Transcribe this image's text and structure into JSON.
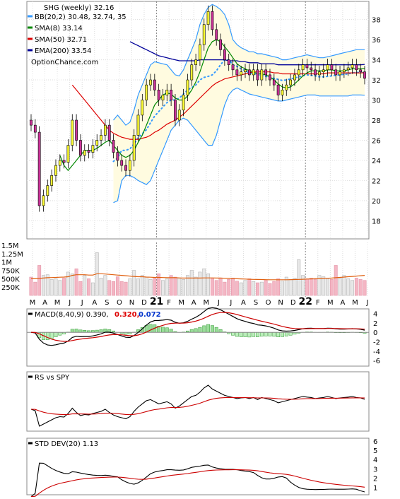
{
  "chart_data": {
    "type": "candlestick",
    "title": "SHG (weekly) 32.16",
    "watermark": "OptionChance.com",
    "legend": [
      {
        "label": "BB(20,2) 30.48, 32.74, 35",
        "color": "#3399ff"
      },
      {
        "label": "SMA(8) 33.14",
        "color": "#008800"
      },
      {
        "label": "SMA(50) 32.71",
        "color": "#dd0000"
      },
      {
        "label": "EMA(200) 33.54",
        "color": "#000099"
      }
    ],
    "x_ticks": [
      "M",
      "A",
      "M",
      "J",
      "J",
      "A",
      "S",
      "O",
      "N",
      "D",
      "21",
      "F",
      "M",
      "A",
      "M",
      "J",
      "J",
      "A",
      "S",
      "O",
      "N",
      "D",
      "22",
      "F",
      "M",
      "A",
      "M",
      "J"
    ],
    "price_axis": {
      "ticks": [
        18,
        20,
        22,
        24,
        26,
        28,
        30,
        32,
        34,
        36,
        38
      ],
      "ylim": [
        16.2,
        39.8
      ]
    },
    "close": [
      27.5,
      26.8,
      19.5,
      20.5,
      21.5,
      22.5,
      23.5,
      24.0,
      23.8,
      25.5,
      28.0,
      26.0,
      24.5,
      25.0,
      24.8,
      25.5,
      26.0,
      26.5,
      27.5,
      26.0,
      24.8,
      24.0,
      23.5,
      23.0,
      24.0,
      26.5,
      28.5,
      30.0,
      31.5,
      32.0,
      31.0,
      30.0,
      30.5,
      31.0,
      30.0,
      28.0,
      29.0,
      30.5,
      32.0,
      33.5,
      34.0,
      35.5,
      37.5,
      38.8,
      37.0,
      36.0,
      35.0,
      34.0,
      33.5,
      33.0,
      32.5,
      32.8,
      33.0,
      32.5,
      33.0,
      32.0,
      33.0,
      32.5,
      32.0,
      31.5,
      30.5,
      31.0,
      31.5,
      32.0,
      32.5,
      33.0,
      33.5,
      33.2,
      33.0,
      32.5,
      32.8,
      33.0,
      33.5,
      33.0,
      32.5,
      32.8,
      33.0,
      33.2,
      33.5,
      33.0,
      32.8,
      32.16
    ],
    "bb": {
      "upper": [
        null,
        null,
        null,
        null,
        null,
        null,
        null,
        null,
        null,
        null,
        null,
        null,
        null,
        null,
        null,
        null,
        null,
        null,
        null,
        null,
        28.0,
        28.5,
        28.0,
        27.5,
        27.8,
        29.0,
        30.5,
        31.5,
        32.5,
        33.5,
        33.8,
        33.7,
        33.6,
        33.5,
        33.0,
        32.5,
        32.4,
        33.0,
        34.0,
        35.0,
        36.0,
        37.5,
        38.5,
        39.2,
        39.5,
        39.3,
        39.0,
        38.5,
        37.5,
        36.0,
        35.5,
        35.2,
        35.0,
        34.8,
        34.8,
        34.6,
        34.6,
        34.5,
        34.4,
        34.3,
        34.2,
        34.0,
        34.0,
        34.1,
        34.2,
        34.3,
        34.4,
        34.5,
        34.4,
        34.3,
        34.2,
        34.2,
        34.3,
        34.4,
        34.5,
        34.6,
        34.7,
        34.8,
        34.9,
        35.0,
        35.0,
        35.0
      ],
      "lower": [
        null,
        null,
        null,
        null,
        null,
        null,
        null,
        null,
        null,
        null,
        null,
        null,
        null,
        null,
        null,
        null,
        null,
        null,
        null,
        null,
        19.8,
        20.0,
        22.0,
        22.5,
        22.5,
        22.3,
        22.0,
        21.8,
        21.6,
        22.0,
        23.0,
        24.0,
        25.0,
        26.0,
        27.0,
        27.5,
        28.0,
        28.2,
        28.0,
        27.5,
        27.0,
        26.5,
        26.0,
        25.5,
        25.5,
        26.5,
        28.0,
        29.5,
        30.5,
        31.0,
        31.2,
        31.0,
        30.8,
        30.6,
        30.5,
        30.4,
        30.3,
        30.2,
        30.1,
        30.0,
        29.9,
        29.9,
        30.0,
        30.1,
        30.2,
        30.3,
        30.4,
        30.5,
        30.5,
        30.5,
        30.4,
        30.4,
        30.4,
        30.4,
        30.4,
        30.4,
        30.4,
        30.4,
        30.5,
        30.5,
        30.5,
        30.48
      ]
    },
    "sma8": [
      null,
      null,
      null,
      null,
      null,
      null,
      null,
      24.5,
      23.5,
      23.0,
      23.5,
      24.0,
      24.5,
      25.0,
      25.0,
      25.0,
      25.2,
      25.5,
      25.8,
      26.0,
      25.5,
      25.0,
      24.5,
      24.3,
      24.5,
      25.0,
      25.8,
      26.5,
      27.5,
      28.5,
      29.5,
      30.0,
      30.5,
      30.7,
      30.6,
      30.2,
      30.0,
      30.0,
      30.4,
      31.0,
      31.8,
      32.8,
      34.0,
      35.2,
      35.8,
      36.0,
      35.8,
      35.3,
      34.8,
      34.2,
      33.6,
      33.3,
      33.1,
      32.9,
      32.8,
      32.6,
      32.6,
      32.5,
      32.3,
      32.0,
      31.6,
      31.3,
      31.2,
      31.3,
      31.6,
      32.0,
      32.4,
      32.7,
      32.9,
      32.9,
      32.9,
      32.9,
      33.0,
      33.0,
      32.9,
      32.9,
      32.9,
      33.0,
      33.1,
      33.1,
      33.1,
      33.14
    ],
    "sma50": [
      null,
      null,
      null,
      null,
      null,
      null,
      null,
      null,
      null,
      null,
      31.5,
      31.0,
      30.5,
      30.0,
      29.5,
      29.0,
      28.5,
      28.0,
      27.5,
      27.0,
      26.7,
      26.5,
      26.3,
      26.2,
      26.1,
      26.1,
      26.1,
      26.2,
      26.3,
      26.5,
      26.8,
      27.0,
      27.3,
      27.6,
      27.8,
      28.0,
      28.3,
      28.6,
      29.0,
      29.4,
      29.8,
      30.2,
      30.6,
      31.0,
      31.4,
      31.7,
      31.9,
      32.1,
      32.2,
      32.3,
      32.4,
      32.5,
      32.6,
      32.7,
      32.8,
      32.8,
      32.8,
      32.8,
      32.8,
      32.7,
      32.7,
      32.6,
      32.6,
      32.6,
      32.6,
      32.6,
      32.6,
      32.6,
      32.6,
      32.6,
      32.6,
      32.6,
      32.7,
      32.7,
      32.7,
      32.7,
      32.7,
      32.7,
      32.7,
      32.7,
      32.7,
      32.71
    ],
    "ema200": [
      null,
      null,
      null,
      null,
      null,
      null,
      null,
      null,
      null,
      null,
      null,
      null,
      null,
      null,
      null,
      null,
      null,
      null,
      null,
      null,
      null,
      null,
      null,
      null,
      35.8,
      35.6,
      35.4,
      35.2,
      35.0,
      34.8,
      34.6,
      34.4,
      34.3,
      34.2,
      34.1,
      34.0,
      33.9,
      33.9,
      33.9,
      33.9,
      33.9,
      34.0,
      34.0,
      34.0,
      34.0,
      34.0,
      34.0,
      34.0,
      33.9,
      33.9,
      33.9,
      33.8,
      33.8,
      33.7,
      33.7,
      33.7,
      33.6,
      33.6,
      33.6,
      33.6,
      33.5,
      33.5,
      33.5,
      33.5,
      33.5,
      33.5,
      33.5,
      33.5,
      33.5,
      33.5,
      33.5,
      33.5,
      33.5,
      33.5,
      33.5,
      33.5,
      33.5,
      33.5,
      33.5,
      33.5,
      33.5,
      33.54
    ],
    "volume_axis": {
      "ticks": [
        "1.5M",
        "1.25M",
        "1M",
        "750K",
        "500K",
        "250K"
      ],
      "values": [
        1500,
        1250,
        1000,
        750,
        500,
        250
      ],
      "ylim": [
        0,
        1650
      ]
    },
    "volume": [
      550,
      400,
      900,
      600,
      620,
      480,
      500,
      450,
      520,
      700,
      650,
      800,
      420,
      600,
      500,
      380,
      1280,
      520,
      600,
      450,
      420,
      560,
      420,
      400,
      500,
      750,
      500,
      600,
      550,
      480,
      520,
      650,
      450,
      500,
      600,
      550,
      520,
      480,
      600,
      750,
      550,
      700,
      800,
      650,
      520,
      450,
      520,
      400,
      480,
      520,
      430,
      380,
      450,
      500,
      420,
      380,
      400,
      450,
      360,
      420,
      500,
      430,
      550,
      480,
      520,
      1070,
      600,
      500,
      520,
      480,
      600,
      560,
      500,
      480,
      900,
      520,
      600,
      500,
      450,
      520,
      480,
      450
    ],
    "volume_avg": [
      500,
      500,
      510,
      520,
      530,
      535,
      540,
      545,
      550,
      560,
      600,
      620,
      620,
      620,
      610,
      610,
      650,
      650,
      640,
      630,
      620,
      610,
      600,
      590,
      580,
      570,
      560,
      560,
      550,
      545,
      540,
      540,
      535,
      530,
      530,
      530,
      525,
      520,
      520,
      520,
      520,
      520,
      525,
      525,
      525,
      520,
      520,
      515,
      510,
      505,
      500,
      495,
      490,
      485,
      480,
      478,
      475,
      472,
      470,
      470,
      470,
      470,
      470,
      472,
      475,
      480,
      485,
      490,
      495,
      500,
      505,
      510,
      515,
      520,
      530,
      540,
      550,
      560,
      570,
      580,
      590,
      600
    ],
    "macd": {
      "label": "MACD(8,40,9) 0.390,",
      "value1": "0.320,",
      "value2": "0.072",
      "ticks": [
        4,
        2,
        0,
        -2,
        -4,
        -6
      ],
      "ylim": [
        -7.2,
        5.0
      ]
    },
    "rs": {
      "label": "RS vs SPY"
    },
    "std": {
      "label": "STD DEV(20) 1.13",
      "ticks": [
        1,
        2,
        3,
        4,
        5,
        6
      ],
      "ylim": [
        0.2,
        6.3
      ]
    }
  }
}
